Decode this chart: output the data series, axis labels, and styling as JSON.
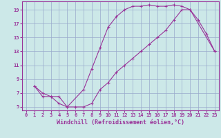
{
  "xlabel": "Windchill (Refroidissement éolien,°C)",
  "background_color": "#cce8e8",
  "grid_color": "#99aacc",
  "line_color": "#993399",
  "xlim": [
    -0.5,
    23.5
  ],
  "ylim": [
    4.5,
    20.2
  ],
  "xticks": [
    0,
    1,
    2,
    3,
    4,
    5,
    6,
    7,
    8,
    9,
    10,
    11,
    12,
    13,
    14,
    15,
    16,
    17,
    18,
    19,
    20,
    21,
    22,
    23
  ],
  "yticks": [
    5,
    7,
    9,
    11,
    13,
    15,
    17,
    19
  ],
  "curve1_x": [
    1,
    2,
    3,
    4,
    5,
    6,
    7,
    8,
    9,
    10,
    11,
    12,
    13,
    14,
    15,
    16,
    17,
    18,
    19,
    20,
    23
  ],
  "curve1_y": [
    8,
    7,
    6.5,
    6.5,
    5,
    5,
    5,
    5.5,
    7.5,
    8.5,
    10,
    11,
    12,
    13,
    14,
    15,
    16,
    17.5,
    19,
    19,
    13
  ],
  "curve2_x": [
    1,
    2,
    3,
    4,
    5,
    7,
    8,
    9,
    10,
    11,
    12,
    13,
    14,
    15,
    16,
    17,
    18,
    19,
    20,
    21,
    22,
    23
  ],
  "curve2_y": [
    8,
    6.5,
    6.5,
    5.5,
    5,
    7.5,
    10.5,
    13.5,
    16.5,
    18,
    19,
    19.5,
    19.5,
    19.7,
    19.5,
    19.5,
    19.7,
    19.5,
    19,
    17.5,
    15.5,
    13
  ],
  "marker_style": "+",
  "marker_size": 3,
  "marker_edge_width": 0.8,
  "line_width": 0.8,
  "tick_fontsize": 5,
  "xlabel_fontsize": 6
}
